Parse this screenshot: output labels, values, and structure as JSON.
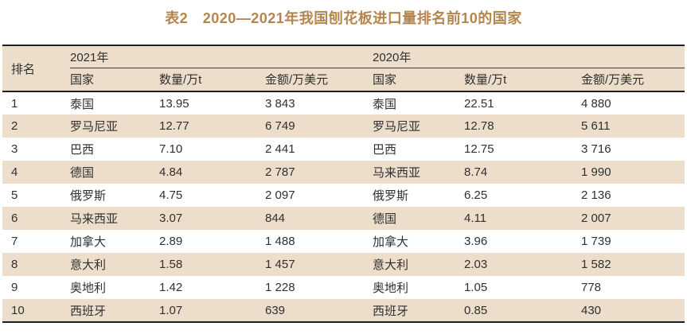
{
  "title": "表2　2020—2021年我国刨花板进口量排名前10的国家",
  "colors": {
    "title": "#b5854e",
    "stripe": "#ecdecb",
    "border_dark": "#1f1f1f",
    "text": "#303030"
  },
  "table": {
    "rank_header": "排名",
    "year_groups": [
      {
        "year": "2021年",
        "columns": [
          "国家",
          "数量/万t",
          "金额/万美元"
        ]
      },
      {
        "year": "2020年",
        "columns": [
          "国家",
          "数量/万t",
          "金额/万美元"
        ]
      }
    ],
    "rows": [
      {
        "rank": "1",
        "y2021": {
          "country": "泰国",
          "quantity": "13.95",
          "amount": "3 843"
        },
        "y2020": {
          "country": "泰国",
          "quantity": "22.51",
          "amount": "4 880"
        }
      },
      {
        "rank": "2",
        "y2021": {
          "country": "罗马尼亚",
          "quantity": "12.77",
          "amount": "6 749"
        },
        "y2020": {
          "country": "罗马尼亚",
          "quantity": "12.78",
          "amount": "5 611"
        }
      },
      {
        "rank": "3",
        "y2021": {
          "country": "巴西",
          "quantity": "7.10",
          "amount": "2 441"
        },
        "y2020": {
          "country": "巴西",
          "quantity": "12.75",
          "amount": "3 716"
        }
      },
      {
        "rank": "4",
        "y2021": {
          "country": "德国",
          "quantity": "4.84",
          "amount": "2 787"
        },
        "y2020": {
          "country": "马来西亚",
          "quantity": "8.74",
          "amount": "1 990"
        }
      },
      {
        "rank": "5",
        "y2021": {
          "country": "俄罗斯",
          "quantity": "4.75",
          "amount": "2 097"
        },
        "y2020": {
          "country": "俄罗斯",
          "quantity": "6.25",
          "amount": "2 136"
        }
      },
      {
        "rank": "6",
        "y2021": {
          "country": "马来西亚",
          "quantity": "3.07",
          "amount": "844"
        },
        "y2020": {
          "country": "德国",
          "quantity": "4.11",
          "amount": "2 007"
        }
      },
      {
        "rank": "7",
        "y2021": {
          "country": "加拿大",
          "quantity": "2.89",
          "amount": "1 488"
        },
        "y2020": {
          "country": "加拿大",
          "quantity": "3.96",
          "amount": "1 739"
        }
      },
      {
        "rank": "8",
        "y2021": {
          "country": "意大利",
          "quantity": "1.58",
          "amount": "1 457"
        },
        "y2020": {
          "country": "意大利",
          "quantity": "2.03",
          "amount": "1 582"
        }
      },
      {
        "rank": "9",
        "y2021": {
          "country": "奥地利",
          "quantity": "1.42",
          "amount": "1 228"
        },
        "y2020": {
          "country": "奥地利",
          "quantity": "1.05",
          "amount": "778"
        }
      },
      {
        "rank": "10",
        "y2021": {
          "country": "西班牙",
          "quantity": "1.07",
          "amount": "639"
        },
        "y2020": {
          "country": "西班牙",
          "quantity": "0.85",
          "amount": "430"
        }
      }
    ]
  }
}
